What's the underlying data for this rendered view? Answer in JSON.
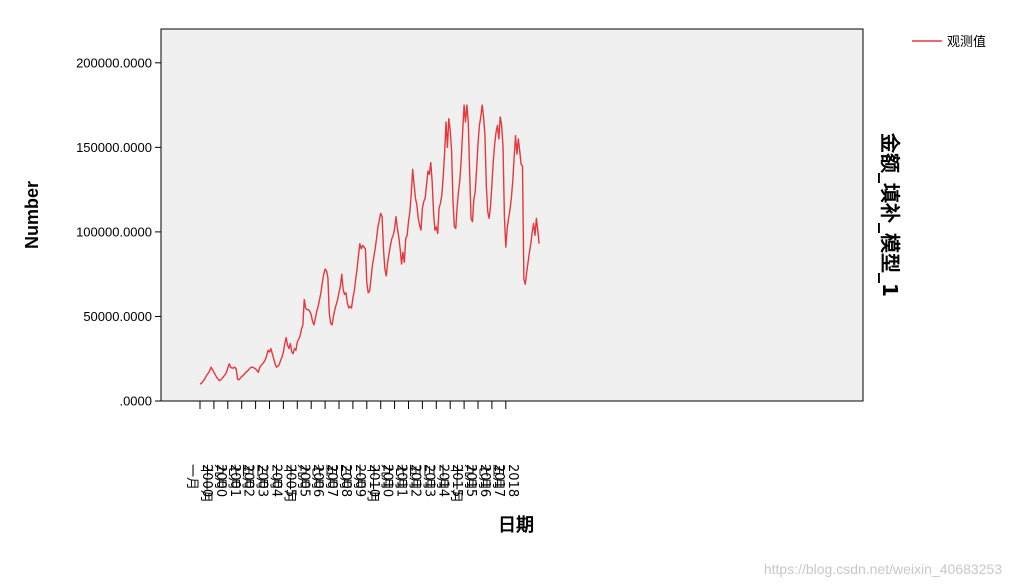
{
  "chart_data": {
    "type": "line",
    "ylabel": "Number",
    "xlabel": "日期",
    "right_label": "金额_填补_模型_1",
    "ylim": [
      0,
      220000
    ],
    "yticks": [
      0,
      50000,
      100000,
      150000,
      200000
    ],
    "ytick_labels": [
      ".0000",
      "50000.0000",
      "100000.0000",
      "150000.0000",
      "200000.0000"
    ],
    "x_start": "2000-01",
    "x_tick_labels": [
      {
        "month": "一月",
        "year": "2000"
      },
      {
        "month": "十一月",
        "year": "2000"
      },
      {
        "month": "九月",
        "year": "2001"
      },
      {
        "month": "七月",
        "year": "2002"
      },
      {
        "month": "五月",
        "year": "2003"
      },
      {
        "month": "三月",
        "year": "2004"
      },
      {
        "month": "一月",
        "year": "2005"
      },
      {
        "month": "十一月",
        "year": "2005"
      },
      {
        "month": "九月",
        "year": "2006"
      },
      {
        "month": "七月",
        "year": "2007"
      },
      {
        "month": "五月",
        "year": "2008"
      },
      {
        "month": "三月",
        "year": "2009"
      },
      {
        "month": "一月",
        "year": "2010"
      },
      {
        "month": "十一月",
        "year": "2010"
      },
      {
        "month": "九月",
        "year": "2011"
      },
      {
        "month": "七月",
        "year": "2012"
      },
      {
        "month": "五月",
        "year": "2013"
      },
      {
        "month": "三月",
        "year": "2014"
      },
      {
        "month": "一月",
        "year": "2015"
      },
      {
        "month": "十一月",
        "year": "2015"
      },
      {
        "month": "九月",
        "year": "2016"
      },
      {
        "month": "七月",
        "year": "2017"
      },
      {
        "month": "五月",
        "year": "2018"
      }
    ],
    "series": [
      {
        "name": "观测值",
        "color": "#e8373c",
        "values": [
          10000,
          10500,
          11500,
          12500,
          14000,
          15500,
          16500,
          18000,
          20000,
          18500,
          17000,
          15500,
          14000,
          13000,
          12000,
          12500,
          13500,
          14500,
          15500,
          17000,
          19500,
          22000,
          20000,
          19500,
          19500,
          20000,
          19000,
          13000,
          12500,
          13500,
          14500,
          15000,
          16000,
          17000,
          17500,
          18500,
          19500,
          20000,
          20000,
          19500,
          19000,
          18000,
          17000,
          20000,
          21000,
          22000,
          23000,
          24500,
          27000,
          30000,
          29000,
          31000,
          28000,
          25000,
          22000,
          20000,
          20500,
          21500,
          24000,
          26000,
          29000,
          34000,
          37500,
          33000,
          31000,
          34000,
          29000,
          28000,
          31000,
          30000,
          35000,
          36500,
          38500,
          42500,
          45000,
          60000,
          55000,
          54000,
          54000,
          53000,
          51000,
          47000,
          45000,
          49000,
          53000,
          56000,
          60000,
          64000,
          70000,
          75000,
          78000,
          77000,
          73000,
          52000,
          46000,
          45000,
          50000,
          54000,
          57000,
          60000,
          64000,
          68000,
          75000,
          66000,
          63000,
          64000,
          58000,
          55000,
          56000,
          55000,
          61000,
          65000,
          72000,
          78000,
          86000,
          93000,
          90000,
          92000,
          91000,
          90000,
          70000,
          64000,
          65000,
          72000,
          80000,
          85000,
          90000,
          96000,
          103000,
          107000,
          111000,
          109000,
          90000,
          78000,
          74000,
          82000,
          87000,
          92000,
          96000,
          98000,
          102000,
          109000,
          102000,
          97000,
          90000,
          81000,
          88000,
          82000,
          96000,
          98000,
          106000,
          112000,
          123000,
          137000,
          128000,
          120000,
          116000,
          108000,
          104000,
          101000,
          114000,
          118000,
          120000,
          128000,
          136000,
          134000,
          141000,
          130000,
          112000,
          101000,
          103000,
          99000,
          114000,
          117000,
          122000,
          133000,
          147000,
          165000,
          150000,
          167000,
          160000,
          148000,
          118000,
          103000,
          102000,
          115000,
          124000,
          131000,
          144000,
          160000,
          175000,
          165000,
          175000,
          165000,
          135000,
          108000,
          106000,
          119000,
          124000,
          137000,
          152000,
          163000,
          168000,
          175000,
          168000,
          157000,
          127000,
          112000,
          108000,
          115000,
          128000,
          142000,
          152000,
          159000,
          163000,
          155000,
          168000,
          163000,
          150000,
          109000,
          91000,
          102000,
          108000,
          113000,
          120000,
          130000,
          144000,
          157000,
          146000,
          155000,
          148000,
          140000,
          139000,
          72000,
          69000,
          76000,
          82000,
          88000,
          93000,
          100000,
          105000,
          98000,
          108000,
          101000,
          93000
        ]
      }
    ],
    "grid": false,
    "legend_position": "top-right"
  },
  "watermark": "https://blog.csdn.net/weixin_40683253"
}
